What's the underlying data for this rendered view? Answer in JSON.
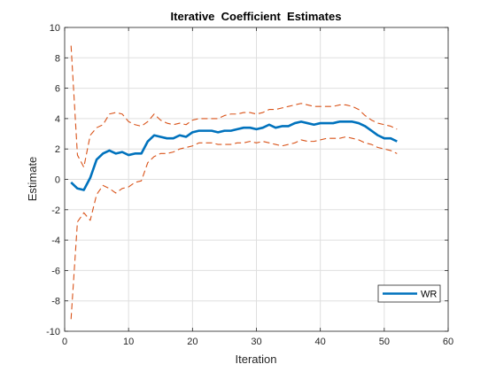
{
  "chart_data": {
    "type": "line",
    "title": "Iterative  Coefficient  Estimates",
    "xlabel": "Iteration",
    "ylabel": "Estimate",
    "xlim": [
      0,
      60
    ],
    "ylim": [
      -10,
      10
    ],
    "xticks": [
      0,
      10,
      20,
      30,
      40,
      50,
      60
    ],
    "yticks": [
      -10,
      -8,
      -6,
      -4,
      -2,
      0,
      2,
      4,
      6,
      8,
      10
    ],
    "grid": true,
    "legend_position": "bottom-right",
    "x": [
      1,
      2,
      3,
      4,
      5,
      6,
      7,
      8,
      9,
      10,
      11,
      12,
      13,
      14,
      15,
      16,
      17,
      18,
      19,
      20,
      21,
      22,
      23,
      24,
      25,
      26,
      27,
      28,
      29,
      30,
      31,
      32,
      33,
      34,
      35,
      36,
      37,
      38,
      39,
      40,
      41,
      42,
      43,
      44,
      45,
      46,
      47,
      48,
      49,
      50,
      51,
      52
    ],
    "series": [
      {
        "name": "WR",
        "role": "estimate",
        "color": "#0072BD",
        "style": "solid",
        "values": [
          -0.2,
          -0.6,
          -0.7,
          0.1,
          1.3,
          1.7,
          1.9,
          1.7,
          1.8,
          1.6,
          1.7,
          1.7,
          2.5,
          2.9,
          2.8,
          2.7,
          2.7,
          2.9,
          2.8,
          3.1,
          3.2,
          3.2,
          3.2,
          3.1,
          3.2,
          3.2,
          3.3,
          3.4,
          3.4,
          3.3,
          3.4,
          3.6,
          3.4,
          3.5,
          3.5,
          3.7,
          3.8,
          3.7,
          3.6,
          3.7,
          3.7,
          3.7,
          3.8,
          3.8,
          3.8,
          3.7,
          3.5,
          3.2,
          2.9,
          2.7,
          2.7,
          2.5
        ]
      },
      {
        "role": "upper-bound",
        "color": "#D95319",
        "style": "dashed",
        "values": [
          8.8,
          1.6,
          0.8,
          2.9,
          3.4,
          3.6,
          4.3,
          4.4,
          4.3,
          3.8,
          3.6,
          3.5,
          3.8,
          4.3,
          3.9,
          3.7,
          3.6,
          3.7,
          3.6,
          3.9,
          4.0,
          4.0,
          4.0,
          4.0,
          4.2,
          4.3,
          4.3,
          4.4,
          4.4,
          4.3,
          4.4,
          4.6,
          4.6,
          4.7,
          4.8,
          4.9,
          5.0,
          4.9,
          4.8,
          4.8,
          4.8,
          4.8,
          4.9,
          4.9,
          4.8,
          4.6,
          4.2,
          3.9,
          3.7,
          3.6,
          3.5,
          3.3
        ]
      },
      {
        "role": "lower-bound",
        "color": "#D95319",
        "style": "dashed",
        "values": [
          -9.2,
          -2.8,
          -2.2,
          -2.7,
          -1.0,
          -0.4,
          -0.6,
          -0.9,
          -0.6,
          -0.5,
          -0.2,
          -0.1,
          1.1,
          1.5,
          1.7,
          1.7,
          1.8,
          2.0,
          2.1,
          2.2,
          2.4,
          2.4,
          2.4,
          2.3,
          2.3,
          2.3,
          2.4,
          2.4,
          2.5,
          2.4,
          2.5,
          2.4,
          2.3,
          2.2,
          2.3,
          2.4,
          2.6,
          2.5,
          2.5,
          2.6,
          2.7,
          2.7,
          2.7,
          2.8,
          2.7,
          2.6,
          2.4,
          2.3,
          2.1,
          2.0,
          1.9,
          1.7
        ]
      }
    ]
  }
}
